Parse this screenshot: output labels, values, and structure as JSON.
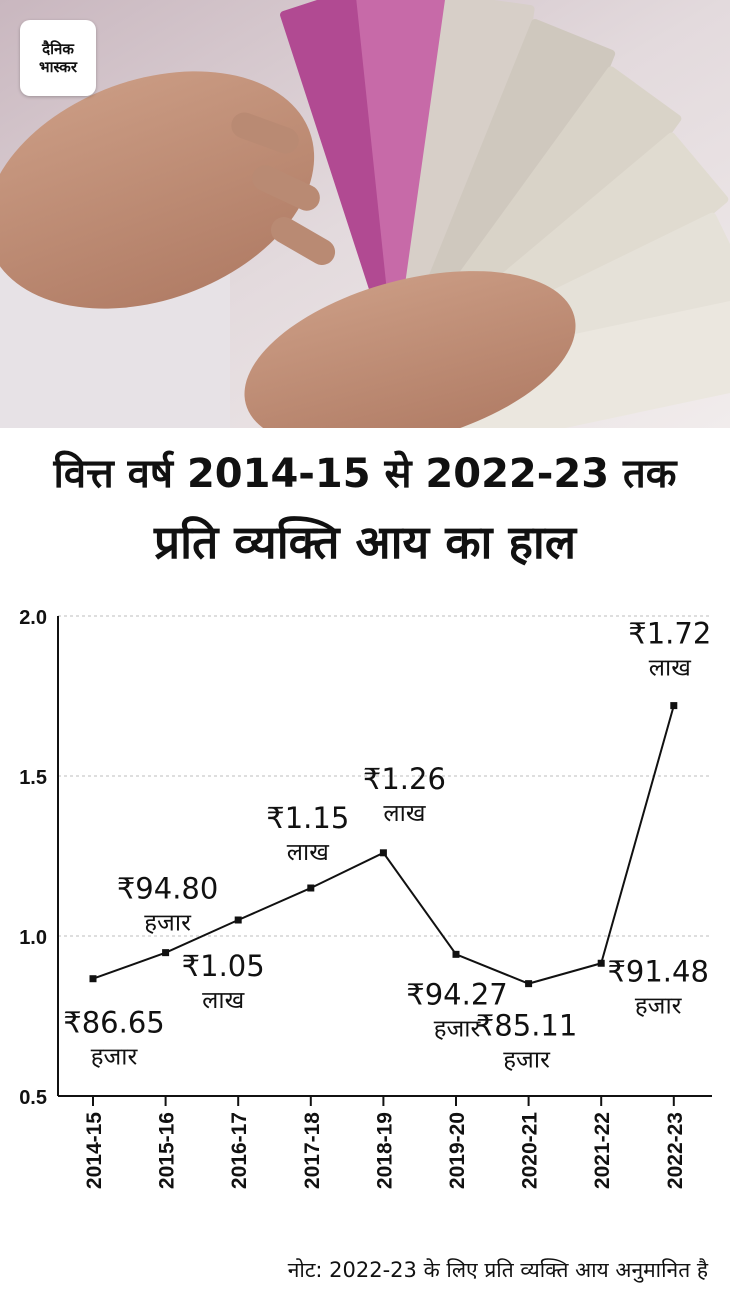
{
  "brand": {
    "logo_line1": "दैनिक",
    "logo_line2": "भास्कर"
  },
  "header": {
    "title_line1": "वित्त वर्ष 2014-15 से 2022-23 तक",
    "title_line2": "प्रति व्यक्ति आय का हाल"
  },
  "note": "नोट: 2022-23 के लिए प्रति व्यक्ति आय अनुमानित है",
  "chart_data": {
    "type": "line",
    "title": "वित्त वर्ष 2014-15 से 2022-23 तक प्रति व्यक्ति आय का हाल",
    "xlabel": "",
    "ylabel": "",
    "ylim": [
      0.5,
      2.0
    ],
    "yticks": [
      "2.0",
      "1.5",
      "1.0",
      "0.5"
    ],
    "grid": true,
    "legend": "none",
    "categories": [
      "2014-15",
      "2015-16",
      "2016-17",
      "2017-18",
      "2018-19",
      "2019-20",
      "2020-21",
      "2021-22",
      "2022-23"
    ],
    "values": [
      0.8665,
      0.948,
      1.05,
      1.15,
      1.26,
      0.9427,
      0.8511,
      0.9148,
      1.72
    ],
    "labels": [
      {
        "amount": "₹86.65",
        "unit": "हजार"
      },
      {
        "amount": "₹94.80",
        "unit": "हजार"
      },
      {
        "amount": "₹1.05",
        "unit": "लाख"
      },
      {
        "amount": "₹1.15",
        "unit": "लाख"
      },
      {
        "amount": "₹1.26",
        "unit": "लाख"
      },
      {
        "amount": "₹94.27",
        "unit": "हजार"
      },
      {
        "amount": "₹85.11",
        "unit": "हजार"
      },
      {
        "amount": "₹91.48",
        "unit": "हजार"
      },
      {
        "amount": "₹1.72",
        "unit": "लाख"
      }
    ],
    "colors": {
      "line": "#111111",
      "grid": "#bdbdbd"
    }
  }
}
